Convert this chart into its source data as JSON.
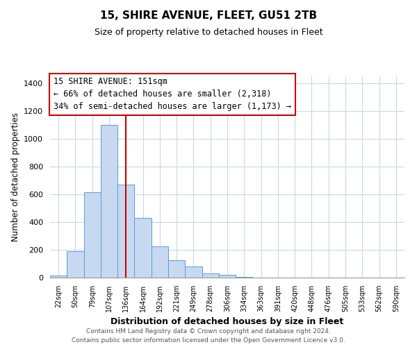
{
  "title": "15, SHIRE AVENUE, FLEET, GU51 2TB",
  "subtitle": "Size of property relative to detached houses in Fleet",
  "xlabel": "Distribution of detached houses by size in Fleet",
  "ylabel": "Number of detached properties",
  "bar_labels": [
    "22sqm",
    "50sqm",
    "79sqm",
    "107sqm",
    "136sqm",
    "164sqm",
    "192sqm",
    "221sqm",
    "249sqm",
    "278sqm",
    "306sqm",
    "334sqm",
    "363sqm",
    "391sqm",
    "420sqm",
    "448sqm",
    "476sqm",
    "505sqm",
    "533sqm",
    "562sqm",
    "590sqm"
  ],
  "bar_values": [
    15,
    190,
    615,
    1100,
    670,
    430,
    225,
    125,
    80,
    30,
    20,
    5,
    2,
    1,
    0,
    0,
    0,
    0,
    0,
    0,
    0
  ],
  "bar_color": "#c6d9f1",
  "bar_edgecolor": "#5b9bd5",
  "vline_x": 4.5,
  "vline_color": "#cc0000",
  "annotation_title": "15 SHIRE AVENUE: 151sqm",
  "annotation_line1": "← 66% of detached houses are smaller (2,318)",
  "annotation_line2": "34% of semi-detached houses are larger (1,173) →",
  "annotation_box_color": "#ffffff",
  "annotation_box_edgecolor": "#cc0000",
  "ylim": [
    0,
    1450
  ],
  "yticks": [
    0,
    200,
    400,
    600,
    800,
    1000,
    1200,
    1400
  ],
  "footer1": "Contains HM Land Registry data © Crown copyright and database right 2024.",
  "footer2": "Contains public sector information licensed under the Open Government Licence v3.0.",
  "bg_color": "#ffffff",
  "grid_color": "#c8d8ec"
}
